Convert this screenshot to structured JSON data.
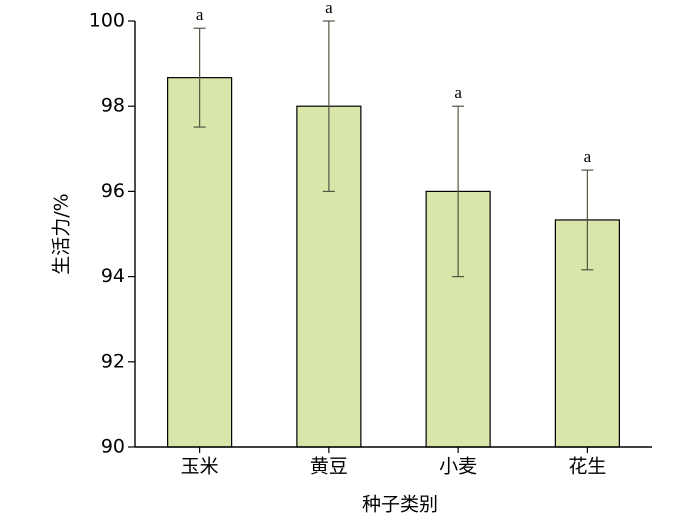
{
  "chart_data": {
    "type": "bar",
    "x_label": "种子类别",
    "y_label": "生活力/%",
    "categories": [
      "玉米",
      "黄豆",
      "小麦",
      "花生"
    ],
    "values": [
      98.67,
      98.0,
      96.0,
      95.33
    ],
    "errors": [
      1.16,
      2.0,
      2.0,
      1.17
    ],
    "annotations": [
      "a",
      "a",
      "a",
      "a"
    ],
    "color": "#d8e7a9",
    "ylim": [
      90,
      100
    ],
    "yticks": [
      90,
      92,
      94,
      96,
      98,
      100
    ]
  }
}
